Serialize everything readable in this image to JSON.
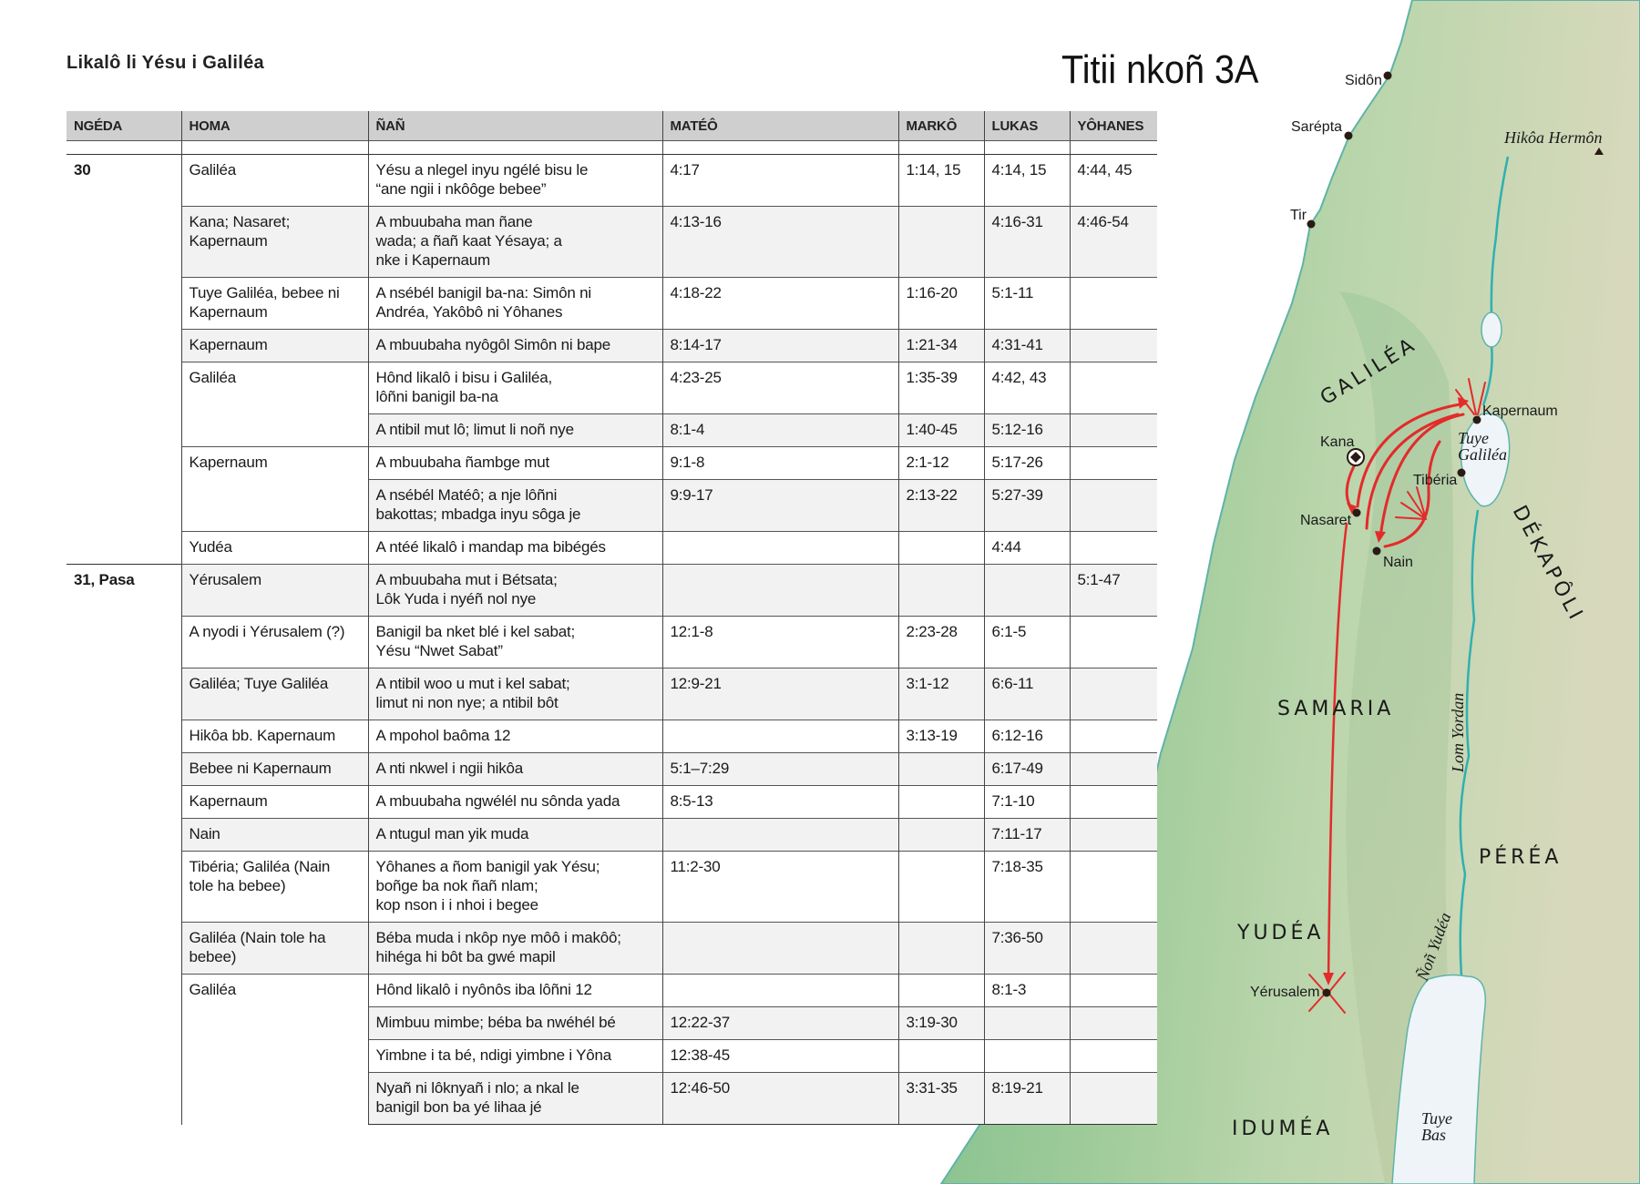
{
  "doc_title": "Likalô li Yésu i Galiléa",
  "map": {
    "title": "Titii nkoñ 3A",
    "colors": {
      "route": "#e32b2b",
      "water": "#eef4f8",
      "river": "#2fb0b0",
      "land_coast": "#86c492",
      "land_inland": "#d6d9bb"
    },
    "cities": {
      "sidon": "Sidôn",
      "sarepta": "Sarépta",
      "tir": "Tir",
      "kapernaum": "Kapernaum",
      "kana": "Kana",
      "tiberia": "Tibéria",
      "nasaret": "Nasaret",
      "nain": "Nain",
      "yerusalem": "Yérusalem"
    },
    "mountain": "Hikôa Hermôn",
    "regions": {
      "galilea": "GALILÉA",
      "dekapoli": "DÉKAPÔLI",
      "samaria": "SAMARIA",
      "perea": "PÉRÉA",
      "yudea": "YUDÉA",
      "idumea": "IDUMÉA"
    },
    "water": {
      "tuye_galilea_1": "Tuye",
      "tuye_galilea_2": "Galiléa",
      "tuye_bas_1": "Tuye",
      "tuye_bas_2": "Bas",
      "lom_yordan": "Lom Yordan",
      "non_yudea": "Ñoñ Yudéa"
    }
  },
  "table": {
    "headers": [
      "NGÉDA",
      "HOMA",
      "ÑAÑ",
      "MATÉÔ",
      "MARKÔ",
      "LUKAS",
      "YÔHANES"
    ],
    "groups": [
      {
        "year": "30",
        "places": [
          {
            "place": "Galiléa",
            "events": [
              {
                "event": "Yésu a nlegel inyu ngélé bisu le\n“ane ngii i nkôôge bebee”",
                "mateo": "4:17",
                "marko": "1:14, 15",
                "lukas": "4:14, 15",
                "yohanes": "4:44, 45"
              }
            ]
          },
          {
            "place": "Kana; Nasaret;\nKapernaum",
            "events": [
              {
                "event": "A mbuubaha man ñane\nwada; a ñañ kaat Yésaya; a\nnke i Kapernaum",
                "mateo": "4:13-16",
                "marko": "",
                "lukas": "4:16-31",
                "yohanes": "4:46-54"
              }
            ]
          },
          {
            "place": "Tuye Galiléa, bebee ni\nKapernaum",
            "events": [
              {
                "event": "A nsébél banigil ba-na: Simôn ni\nAndréa, Yakôbô ni Yôhanes",
                "mateo": "4:18-22",
                "marko": "1:16-20",
                "lukas": "5:1-11",
                "yohanes": ""
              }
            ]
          },
          {
            "place": "Kapernaum",
            "events": [
              {
                "event": "A mbuubaha nyôgôl Simôn ni bape",
                "mateo": "8:14-17",
                "marko": "1:21-34",
                "lukas": "4:31-41",
                "yohanes": ""
              }
            ]
          },
          {
            "place": "Galiléa",
            "events": [
              {
                "event": "Hônd likalô i bisu i Galiléa,\nlôñni banigil ba-na",
                "mateo": "4:23-25",
                "marko": "1:35-39",
                "lukas": "4:42, 43",
                "yohanes": ""
              },
              {
                "event": "A ntibil mut lô; limut li noñ nye",
                "mateo": "8:1-4",
                "marko": "1:40-45",
                "lukas": "5:12-16",
                "yohanes": ""
              }
            ]
          },
          {
            "place": "Kapernaum",
            "events": [
              {
                "event": "A mbuubaha ñambge mut",
                "mateo": "9:1-8",
                "marko": "2:1-12",
                "lukas": "5:17-26",
                "yohanes": ""
              },
              {
                "event": "A nsébél Matéô; a nje lôñni\nbakottas; mbadga inyu sôga je",
                "mateo": "9:9-17",
                "marko": "2:13-22",
                "lukas": "5:27-39",
                "yohanes": ""
              }
            ]
          },
          {
            "place": "Yudéa",
            "events": [
              {
                "event": "A ntéé likalô i mandap ma bibégés",
                "mateo": "",
                "marko": "",
                "lukas": "4:44",
                "yohanes": ""
              }
            ]
          }
        ]
      },
      {
        "year": "31, Pasa",
        "places": [
          {
            "place": "Yérusalem",
            "events": [
              {
                "event": "A mbuubaha mut i Bétsata;\nLôk Yuda i nyéñ nol nye",
                "mateo": "",
                "marko": "",
                "lukas": "",
                "yohanes": "5:1-47"
              }
            ]
          },
          {
            "place": "A nyodi i Yérusalem (?)",
            "events": [
              {
                "event": "Banigil ba nket blé i kel sabat;\nYésu “Nwet Sabat”",
                "mateo": "12:1-8",
                "marko": "2:23-28",
                "lukas": "6:1-5",
                "yohanes": ""
              }
            ]
          },
          {
            "place": "Galiléa; Tuye Galiléa",
            "events": [
              {
                "event": "A ntibil woo u mut i kel sabat;\nlimut ni non nye; a ntibil bôt",
                "mateo": "12:9-21",
                "marko": "3:1-12",
                "lukas": "6:6-11",
                "yohanes": ""
              }
            ]
          },
          {
            "place": "Hikôa bb. Kapernaum",
            "events": [
              {
                "event": "A mpohol baôma 12",
                "mateo": "",
                "marko": "3:13-19",
                "lukas": "6:12-16",
                "yohanes": ""
              }
            ]
          },
          {
            "place": "Bebee ni Kapernaum",
            "events": [
              {
                "event": "A nti nkwel i ngii hikôa",
                "mateo": "5:1–7:29",
                "marko": "",
                "lukas": "6:17-49",
                "yohanes": ""
              }
            ]
          },
          {
            "place": "Kapernaum",
            "events": [
              {
                "event": "A mbuubaha ngwélél nu sônda yada",
                "mateo": "8:5-13",
                "marko": "",
                "lukas": "7:1-10",
                "yohanes": ""
              }
            ]
          },
          {
            "place": "Nain",
            "events": [
              {
                "event": "A ntugul man yik muda",
                "mateo": "",
                "marko": "",
                "lukas": "7:11-17",
                "yohanes": ""
              }
            ]
          },
          {
            "place": "Tibéria; Galiléa (Nain\ntole ha bebee)",
            "events": [
              {
                "event": "Yôhanes a ñom banigil yak Yésu;\nboñge ba nok ñañ nlam;\nkop nson i i nhoi i begee",
                "mateo": "11:2-30",
                "marko": "",
                "lukas": "7:18-35",
                "yohanes": ""
              }
            ]
          },
          {
            "place": "Galiléa (Nain tole ha\nbebee)",
            "events": [
              {
                "event": "Béba muda i nkôp nye môô i makôô;\nhihéga hi bôt ba gwé mapil",
                "mateo": "",
                "marko": "",
                "lukas": "7:36-50",
                "yohanes": ""
              }
            ]
          },
          {
            "place": "Galiléa",
            "events": [
              {
                "event": "Hônd likalô i nyônôs iba lôñni 12",
                "mateo": "",
                "marko": "",
                "lukas": "8:1-3",
                "yohanes": ""
              },
              {
                "event": "Mimbuu mimbe; béba ba nwéhél bé",
                "mateo": "12:22-37",
                "marko": "3:19-30",
                "lukas": "",
                "yohanes": ""
              },
              {
                "event": "Yimbne i ta bé, ndigi yimbne i Yôna",
                "mateo": "12:38-45",
                "marko": "",
                "lukas": "",
                "yohanes": ""
              },
              {
                "event": "Nyañ ni lôknyañ i nlo; a nkal le\nbanigil bon ba yé lihaa jé",
                "mateo": "12:46-50",
                "marko": "3:31-35",
                "lukas": "8:19-21",
                "yohanes": ""
              }
            ]
          }
        ]
      }
    ]
  }
}
